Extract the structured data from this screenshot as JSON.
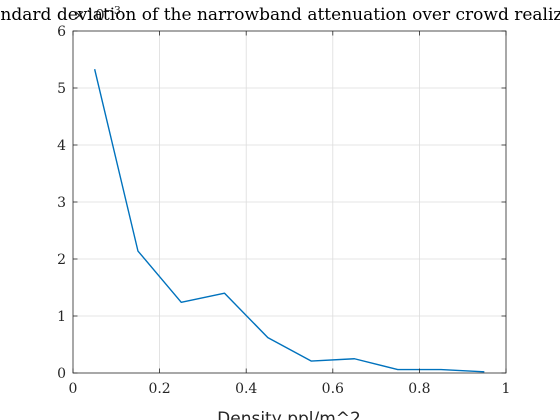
{
  "chart_data": {
    "type": "line",
    "title": "tandard deviation of the narrowband attenuation over crowd realiza",
    "xlabel": "Density ppl/m^2",
    "ylabel": "",
    "y_exponent_base": "×10",
    "y_exponent_power": "−3",
    "xlim": [
      0,
      1
    ],
    "ylim": [
      0,
      6
    ],
    "grid": true,
    "x_ticks": [
      0,
      0.2,
      0.4,
      0.6,
      0.8,
      1
    ],
    "x_tick_labels": [
      "0",
      "0.2",
      "0.4",
      "0.6",
      "0.8",
      "1"
    ],
    "y_ticks": [
      0,
      1,
      2,
      3,
      4,
      5,
      6
    ],
    "y_tick_labels": [
      "0",
      "1",
      "2",
      "3",
      "4",
      "5",
      "6"
    ],
    "series": [
      {
        "color": "#0072bd",
        "x": [
          0.05,
          0.15,
          0.25,
          0.35,
          0.45,
          0.55,
          0.65,
          0.75,
          0.85,
          0.95
        ],
        "y": [
          5.33,
          2.14,
          1.24,
          1.4,
          0.62,
          0.21,
          0.25,
          0.06,
          0.06,
          0.02
        ]
      }
    ]
  }
}
